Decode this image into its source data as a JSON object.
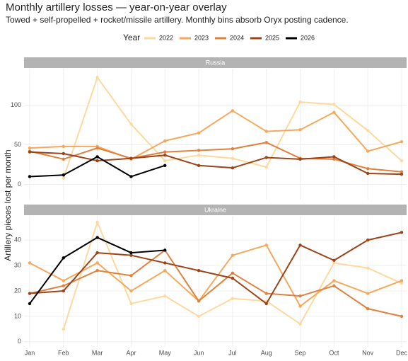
{
  "title": "Monthly artillery losses — year-on-year overlay",
  "subtitle": "Towed + self-propelled + rocket/missile artillery. Monthly bins absorb Oryx posting cadence.",
  "y_label": "Artillery pieces lost per month",
  "legend_title": "Year",
  "chart_data": [
    {
      "type": "line",
      "panel": "Russia",
      "categories": [
        "Jan",
        "Feb",
        "Mar",
        "Apr",
        "May",
        "Jun",
        "Jul",
        "Aug",
        "Sep",
        "Oct",
        "Nov",
        "Dec"
      ],
      "ylim": [
        -19,
        146
      ],
      "yticks": [
        0,
        50,
        100
      ],
      "grid": true,
      "series": [
        {
          "name": "2022",
          "color": "#fdd9a0",
          "values": [
            null,
            8,
            135,
            76,
            30,
            37,
            33,
            22,
            104,
            101,
            68,
            30
          ]
        },
        {
          "name": "2023",
          "color": "#f5a85c",
          "values": [
            46,
            48,
            48,
            32,
            55,
            65,
            93,
            67,
            69,
            91,
            42,
            54
          ]
        },
        {
          "name": "2024",
          "color": "#e0813e",
          "values": [
            42,
            32,
            46,
            33,
            41,
            43,
            45,
            53,
            33,
            32,
            20,
            16
          ]
        },
        {
          "name": "2025",
          "color": "#9c4318",
          "values": [
            41,
            39,
            30,
            33,
            37,
            24,
            21,
            34,
            32,
            35,
            14,
            13
          ]
        },
        {
          "name": "2026",
          "color": "#000000",
          "values": [
            10,
            12,
            35,
            10,
            24,
            null,
            null,
            null,
            null,
            null,
            null,
            null
          ]
        }
      ]
    },
    {
      "type": "line",
      "panel": "Ukraine",
      "categories": [
        "Jan",
        "Feb",
        "Mar",
        "Apr",
        "May",
        "Jun",
        "Jul",
        "Aug",
        "Sep",
        "Oct",
        "Nov",
        "Dec"
      ],
      "ylim": [
        -2,
        49.5
      ],
      "yticks": [
        0,
        10,
        20,
        30,
        40
      ],
      "grid": true,
      "series": [
        {
          "name": "2022",
          "color": "#fdd9a0",
          "values": [
            null,
            5,
            47,
            15,
            18,
            10,
            17,
            16,
            7,
            31,
            29,
            23
          ]
        },
        {
          "name": "2023",
          "color": "#f5a85c",
          "values": [
            31,
            24,
            31,
            20,
            28,
            16,
            34,
            38,
            14,
            24,
            19,
            24
          ]
        },
        {
          "name": "2024",
          "color": "#e0813e",
          "values": [
            19,
            22,
            28,
            26,
            36,
            16,
            27,
            19,
            18,
            22,
            13,
            10
          ]
        },
        {
          "name": "2025",
          "color": "#9c4318",
          "values": [
            19,
            20,
            35,
            34,
            31,
            28,
            25,
            15,
            38,
            32,
            40,
            43
          ]
        },
        {
          "name": "2026",
          "color": "#000000",
          "values": [
            15,
            33,
            41,
            35,
            36,
            null,
            null,
            null,
            null,
            null,
            null,
            null
          ]
        }
      ]
    }
  ]
}
